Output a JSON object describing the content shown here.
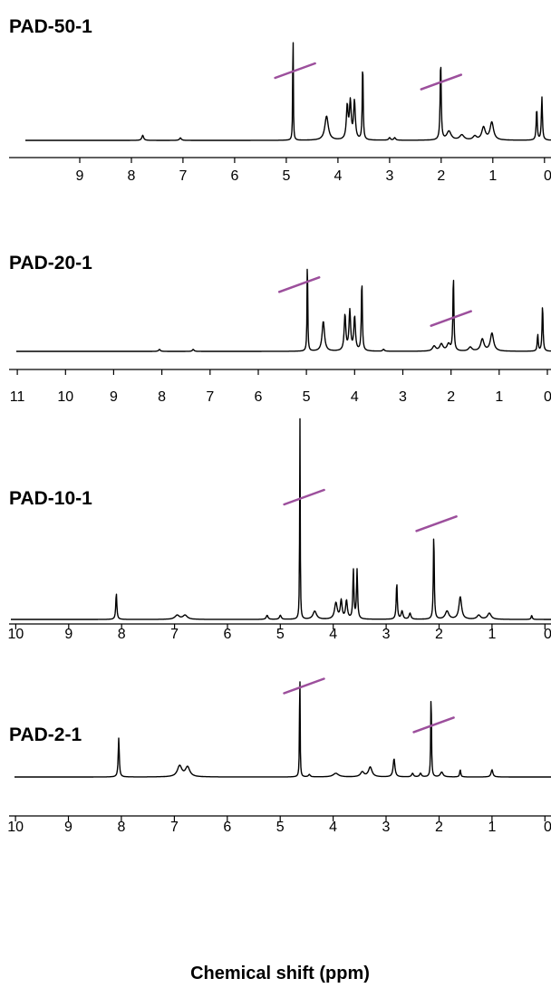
{
  "chart_data": [
    {
      "type": "line",
      "title": "PAD-50-1",
      "xlabel": "",
      "xlim": [
        9.5,
        0
      ],
      "xticks": [
        9,
        8,
        7,
        6,
        5,
        4,
        3,
        2,
        1,
        0
      ],
      "tick_labels": [
        "9",
        "8",
        "7",
        "6",
        "5",
        "4",
        "3",
        "2",
        "1",
        "0"
      ],
      "peaks": [
        {
          "ppm": 7.78,
          "h": 0.04,
          "w": 0.02
        },
        {
          "ppm": 7.05,
          "h": 0.02,
          "w": 0.02
        },
        {
          "ppm": 4.87,
          "h": 1.0,
          "w": 0.006
        },
        {
          "ppm": 4.22,
          "h": 0.19,
          "w": 0.04
        },
        {
          "ppm": 3.82,
          "h": 0.26,
          "w": 0.02
        },
        {
          "ppm": 3.76,
          "h": 0.29,
          "w": 0.02
        },
        {
          "ppm": 3.68,
          "h": 0.3,
          "w": 0.02
        },
        {
          "ppm": 3.52,
          "h": 0.62,
          "w": 0.01
        },
        {
          "ppm": 3.0,
          "h": 0.02,
          "w": 0.02
        },
        {
          "ppm": 2.9,
          "h": 0.02,
          "w": 0.02
        },
        {
          "ppm": 2.01,
          "h": 0.63,
          "w": 0.012
        },
        {
          "ppm": 1.85,
          "h": 0.07,
          "w": 0.05
        },
        {
          "ppm": 1.6,
          "h": 0.04,
          "w": 0.05
        },
        {
          "ppm": 1.35,
          "h": 0.03,
          "w": 0.04
        },
        {
          "ppm": 1.18,
          "h": 0.1,
          "w": 0.04
        },
        {
          "ppm": 1.02,
          "h": 0.14,
          "w": 0.04
        },
        {
          "ppm": 0.15,
          "h": 0.25,
          "w": 0.012
        },
        {
          "ppm": 0.05,
          "h": 0.34,
          "w": 0.012
        }
      ],
      "integral_marks": [
        {
          "ppm": 4.83,
          "h": 0.55
        },
        {
          "ppm": 2.0,
          "h": 0.46
        }
      ]
    },
    {
      "type": "line",
      "title": "PAD-20-1",
      "xlabel": "",
      "xlim": [
        11,
        0
      ],
      "xticks": [
        11,
        10,
        9,
        8,
        7,
        6,
        5,
        4,
        3,
        2,
        1,
        0
      ],
      "tick_labels": [
        "11",
        "10",
        "9",
        "8",
        "7",
        "6",
        "5",
        "4",
        "3",
        "2",
        "1",
        "0"
      ],
      "peaks": [
        {
          "ppm": 8.05,
          "h": 0.02,
          "w": 0.02
        },
        {
          "ppm": 7.35,
          "h": 0.02,
          "w": 0.02
        },
        {
          "ppm": 4.98,
          "h": 1.0,
          "w": 0.008
        },
        {
          "ppm": 4.65,
          "h": 0.3,
          "w": 0.03
        },
        {
          "ppm": 4.2,
          "h": 0.36,
          "w": 0.02
        },
        {
          "ppm": 4.1,
          "h": 0.4,
          "w": 0.02
        },
        {
          "ppm": 4.0,
          "h": 0.34,
          "w": 0.02
        },
        {
          "ppm": 3.85,
          "h": 0.72,
          "w": 0.012
        },
        {
          "ppm": 3.4,
          "h": 0.02,
          "w": 0.02
        },
        {
          "ppm": 2.35,
          "h": 0.05,
          "w": 0.04
        },
        {
          "ppm": 2.2,
          "h": 0.07,
          "w": 0.04
        },
        {
          "ppm": 2.05,
          "h": 0.07,
          "w": 0.04
        },
        {
          "ppm": 1.95,
          "h": 0.76,
          "w": 0.012
        },
        {
          "ppm": 1.6,
          "h": 0.04,
          "w": 0.04
        },
        {
          "ppm": 1.35,
          "h": 0.12,
          "w": 0.04
        },
        {
          "ppm": 1.15,
          "h": 0.18,
          "w": 0.04
        },
        {
          "ppm": 0.2,
          "h": 0.17,
          "w": 0.012
        },
        {
          "ppm": 0.1,
          "h": 0.47,
          "w": 0.012
        }
      ],
      "integral_marks": [
        {
          "ppm": 5.15,
          "h": 0.67
        },
        {
          "ppm": 2.0,
          "h": 0.33
        }
      ]
    },
    {
      "type": "line",
      "title": "PAD-10-1",
      "xlabel": "",
      "xlim": [
        10,
        0
      ],
      "xticks": [
        10,
        9,
        8,
        7,
        6,
        5,
        4,
        3,
        2,
        1,
        0
      ],
      "tick_labels": [
        "10",
        "9",
        "8",
        "7",
        "6",
        "5",
        "4",
        "3",
        "2",
        "1",
        "0"
      ],
      "peaks": [
        {
          "ppm": 8.1,
          "h": 0.13,
          "w": 0.012
        },
        {
          "ppm": 6.95,
          "h": 0.02,
          "w": 0.05
        },
        {
          "ppm": 6.8,
          "h": 0.02,
          "w": 0.05
        },
        {
          "ppm": 5.25,
          "h": 0.02,
          "w": 0.02
        },
        {
          "ppm": 5.0,
          "h": 0.02,
          "w": 0.02
        },
        {
          "ppm": 4.63,
          "h": 1.0,
          "w": 0.006
        },
        {
          "ppm": 4.35,
          "h": 0.04,
          "w": 0.04
        },
        {
          "ppm": 3.95,
          "h": 0.08,
          "w": 0.03
        },
        {
          "ppm": 3.85,
          "h": 0.09,
          "w": 0.02
        },
        {
          "ppm": 3.75,
          "h": 0.09,
          "w": 0.02
        },
        {
          "ppm": 3.62,
          "h": 0.24,
          "w": 0.012
        },
        {
          "ppm": 3.55,
          "h": 0.24,
          "w": 0.012
        },
        {
          "ppm": 2.8,
          "h": 0.18,
          "w": 0.012
        },
        {
          "ppm": 2.7,
          "h": 0.04,
          "w": 0.02
        },
        {
          "ppm": 2.55,
          "h": 0.03,
          "w": 0.02
        },
        {
          "ppm": 2.1,
          "h": 0.43,
          "w": 0.01
        },
        {
          "ppm": 1.85,
          "h": 0.04,
          "w": 0.04
        },
        {
          "ppm": 1.6,
          "h": 0.11,
          "w": 0.03
        },
        {
          "ppm": 1.25,
          "h": 0.02,
          "w": 0.04
        },
        {
          "ppm": 1.05,
          "h": 0.03,
          "w": 0.04
        },
        {
          "ppm": 0.25,
          "h": 0.02,
          "w": 0.012
        }
      ],
      "integral_marks": [
        {
          "ppm": 4.55,
          "h": 0.6
        },
        {
          "ppm": 2.05,
          "h": 0.47
        }
      ]
    },
    {
      "type": "line",
      "title": "PAD-2-1",
      "xlabel": "Chemical shift (ppm)",
      "xlim": [
        10,
        0
      ],
      "xticks": [
        10,
        9,
        8,
        7,
        6,
        5,
        4,
        3,
        2,
        1,
        0
      ],
      "tick_labels": [
        "10",
        "9",
        "8",
        "7",
        "6",
        "5",
        "4",
        "3",
        "2",
        "1",
        "0"
      ],
      "peaks": [
        {
          "ppm": 8.05,
          "h": 0.32,
          "w": 0.012
        },
        {
          "ppm": 6.9,
          "h": 0.09,
          "w": 0.05
        },
        {
          "ppm": 6.75,
          "h": 0.08,
          "w": 0.05
        },
        {
          "ppm": 4.63,
          "h": 1.0,
          "w": 0.006
        },
        {
          "ppm": 4.45,
          "h": 0.02,
          "w": 0.02
        },
        {
          "ppm": 3.95,
          "h": 0.03,
          "w": 0.06
        },
        {
          "ppm": 3.45,
          "h": 0.04,
          "w": 0.04
        },
        {
          "ppm": 3.3,
          "h": 0.08,
          "w": 0.04
        },
        {
          "ppm": 2.85,
          "h": 0.15,
          "w": 0.02
        },
        {
          "ppm": 2.5,
          "h": 0.03,
          "w": 0.02
        },
        {
          "ppm": 2.35,
          "h": 0.03,
          "w": 0.02
        },
        {
          "ppm": 2.15,
          "h": 0.73,
          "w": 0.008
        },
        {
          "ppm": 1.95,
          "h": 0.04,
          "w": 0.03
        },
        {
          "ppm": 1.6,
          "h": 0.06,
          "w": 0.012
        },
        {
          "ppm": 1.0,
          "h": 0.06,
          "w": 0.02
        }
      ],
      "integral_marks": [
        {
          "ppm": 4.55,
          "h": 0.75
        },
        {
          "ppm": 2.1,
          "h": 0.43
        }
      ]
    }
  ],
  "colors": {
    "spectrum": "#000000",
    "integral": "#9c4f9c"
  }
}
